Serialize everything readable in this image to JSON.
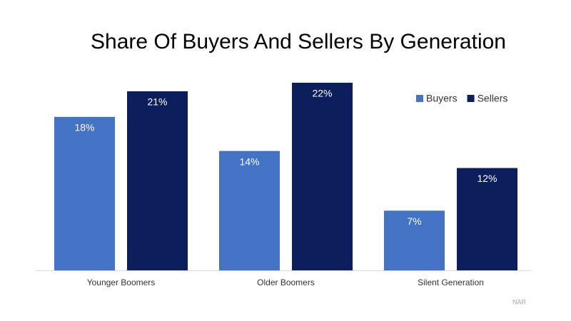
{
  "chart_data": {
    "type": "bar",
    "title": "Share Of Buyers And Sellers By Generation",
    "categories": [
      "Younger Boomers",
      "Older Boomers",
      "Silent Generation"
    ],
    "series": [
      {
        "name": "Buyers",
        "color": "#4472c4",
        "values": [
          18,
          14,
          7
        ],
        "value_labels": [
          "18%",
          "14%",
          "7%"
        ]
      },
      {
        "name": "Sellers",
        "color": "#0c1f5c",
        "values": [
          21,
          22,
          12
        ],
        "value_labels": [
          "21%",
          "22%",
          "12%"
        ]
      }
    ],
    "legend": "upper right",
    "source": "NAR"
  }
}
